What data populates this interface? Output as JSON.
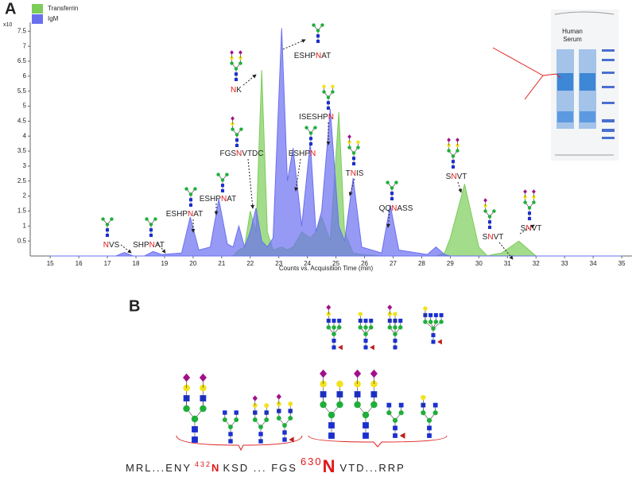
{
  "chart_data": {
    "type": "area",
    "panel_label": "A",
    "y_unit": "x10",
    "xlabel": "Counts vs. Acquisition Time (min)",
    "x": [
      15,
      17.3,
      17.6,
      17.9,
      18.3,
      18.6,
      18.9,
      19.6,
      19.9,
      20.2,
      20.6,
      20.9,
      21.2,
      21.4,
      21.6,
      21.8,
      22.0,
      22.2,
      22.4,
      22.6,
      22.8,
      23.1,
      23.3,
      23.5,
      23.8,
      24.1,
      24.3,
      24.5,
      24.8,
      25.1,
      25.3,
      25.6,
      25.9,
      26.6,
      26.9,
      27.2,
      28.2,
      28.5,
      28.8,
      29.0,
      29.5,
      30.0,
      30.3,
      30.5,
      30.8,
      31.4,
      32.0,
      35
    ],
    "series": [
      {
        "name": "Transferrin",
        "color": "#7ccd5a",
        "values": [
          0,
          0,
          0,
          0,
          0,
          0,
          0,
          0,
          0,
          0,
          0,
          0,
          0,
          0,
          0.2,
          0.3,
          1.5,
          0.8,
          6.2,
          0.8,
          0.2,
          0.3,
          0.2,
          0.3,
          0.8,
          0.6,
          0.8,
          1.3,
          0.5,
          4.8,
          0.8,
          0.1,
          0.05,
          0,
          0,
          0,
          0,
          0,
          0.1,
          0.6,
          2.4,
          0.3,
          0,
          0.05,
          0.1,
          0.5,
          0,
          0
        ]
      },
      {
        "name": "IgM",
        "color": "#6a6ff0",
        "values": [
          0,
          0,
          0.12,
          0,
          0,
          0.15,
          0.05,
          0.1,
          1.3,
          0.2,
          0.3,
          1.9,
          0.4,
          0.3,
          1.0,
          0.3,
          0.8,
          1.6,
          0.5,
          0.3,
          0.6,
          7.6,
          2.5,
          3.6,
          1.0,
          3.8,
          0.8,
          1.5,
          4.9,
          1.0,
          0.5,
          2.6,
          0.3,
          0.1,
          1.7,
          0.2,
          0.05,
          0.3,
          0.05,
          0,
          0,
          0,
          0,
          0,
          0,
          0,
          0,
          0
        ]
      }
    ],
    "xlim": [
      14.3,
      35.36
    ],
    "ylim": [
      0,
      7.8
    ],
    "xticks": [
      15,
      16,
      17,
      18,
      19,
      20,
      21,
      22,
      23,
      24,
      25,
      26,
      27,
      28,
      29,
      30,
      31,
      32,
      33,
      34,
      35
    ],
    "yticks": [
      0.5,
      1,
      1.5,
      2,
      2.5,
      3,
      3.5,
      4,
      4.5,
      5,
      5.5,
      6,
      6.5,
      7,
      7.5
    ],
    "legend": "top-left",
    "annotations": [
      {
        "site": "N",
        "after": "VS"
      },
      {
        "before": "SHP",
        "site": "N",
        "after": "AT"
      },
      {
        "before": "ESHP",
        "site": "N",
        "after": "AT"
      },
      {
        "before": "ESHP",
        "site": "N",
        "after": "AT"
      },
      {
        "before": "FGS",
        "site": "N",
        "after": "VTDC"
      },
      {
        "site": "N",
        "after": "K"
      },
      {
        "before": "ESHP",
        "site": "N",
        "after": "AT"
      },
      {
        "before": "ESHP",
        "site": "N"
      },
      {
        "before": "ISESHP",
        "site": "N"
      },
      {
        "before": "T",
        "site": "N",
        "after": "IS"
      },
      {
        "before": "QQ",
        "site": "N",
        "after": "ASS"
      },
      {
        "before": "S",
        "site": "N",
        "after": "VT"
      },
      {
        "before": "S",
        "site": "N",
        "after": "VT"
      },
      {
        "before": "S",
        "site": "N",
        "after": "VT"
      }
    ],
    "gel_label": [
      "Human",
      "Serum"
    ]
  },
  "panel_b": {
    "label": "B",
    "sequence": [
      "MRL...ENY",
      "432",
      "N",
      "KSD ... FGS",
      "630",
      "N",
      "VTD...RRP"
    ]
  }
}
